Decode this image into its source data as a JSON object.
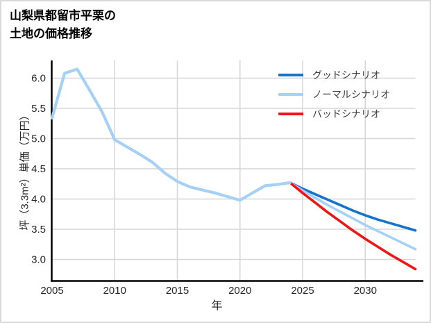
{
  "title": {
    "line1": "山梨県都留市平栗の",
    "line2": "土地の価格推移"
  },
  "chart_data": {
    "type": "line",
    "title": "山梨県都留市平栗の土地の価格推移",
    "xlabel": "年",
    "ylabel": "坪（3.3m²）単価（万円）",
    "x_ticks": [
      2005,
      2010,
      2015,
      2020,
      2025,
      2030
    ],
    "y_ticks": [
      3.0,
      3.5,
      4.0,
      4.5,
      5.0,
      5.5,
      6.0
    ],
    "xlim": [
      2005,
      2034
    ],
    "ylim": [
      2.75,
      6.3
    ],
    "grid": true,
    "legend_position": "upper right",
    "historical": {
      "name": "historical",
      "color": "#a6d1f7",
      "x": [
        2005,
        2006,
        2007,
        2008,
        2009,
        2010,
        2011,
        2012,
        2013,
        2014,
        2015,
        2016,
        2017,
        2018,
        2019,
        2020,
        2021,
        2022,
        2023,
        2024
      ],
      "values": [
        5.34,
        6.08,
        6.15,
        5.8,
        5.44,
        4.98,
        4.86,
        4.74,
        4.61,
        4.43,
        4.29,
        4.2,
        4.15,
        4.1,
        4.04,
        3.98,
        4.1,
        4.22,
        4.24,
        4.27
      ]
    },
    "series": [
      {
        "name": "グッドシナリオ",
        "color": "#1374c9",
        "x": [
          2024,
          2025,
          2026,
          2027,
          2028,
          2029,
          2030,
          2031,
          2032,
          2033,
          2034
        ],
        "values": [
          4.27,
          4.17,
          4.08,
          3.99,
          3.9,
          3.81,
          3.73,
          3.66,
          3.6,
          3.54,
          3.48
        ]
      },
      {
        "name": "ノーマルシナリオ",
        "color": "#a6d1f7",
        "x": [
          2024,
          2025,
          2026,
          2027,
          2028,
          2029,
          2030,
          2031,
          2032,
          2033,
          2034
        ],
        "values": [
          4.27,
          4.14,
          4.02,
          3.9,
          3.79,
          3.68,
          3.57,
          3.47,
          3.37,
          3.27,
          3.17
        ]
      },
      {
        "name": "バッドシナリオ",
        "color": "#f11414",
        "x": [
          2024,
          2025,
          2026,
          2027,
          2028,
          2029,
          2030,
          2031,
          2032,
          2033,
          2034
        ],
        "values": [
          4.27,
          4.1,
          3.94,
          3.78,
          3.63,
          3.48,
          3.34,
          3.21,
          3.08,
          2.96,
          2.84
        ]
      }
    ],
    "style": {
      "grid_color": "#d6d6d6",
      "spine_color": "#000000",
      "tick_label_color": "#262626",
      "legend_text_color": "#3f3f3f"
    }
  }
}
